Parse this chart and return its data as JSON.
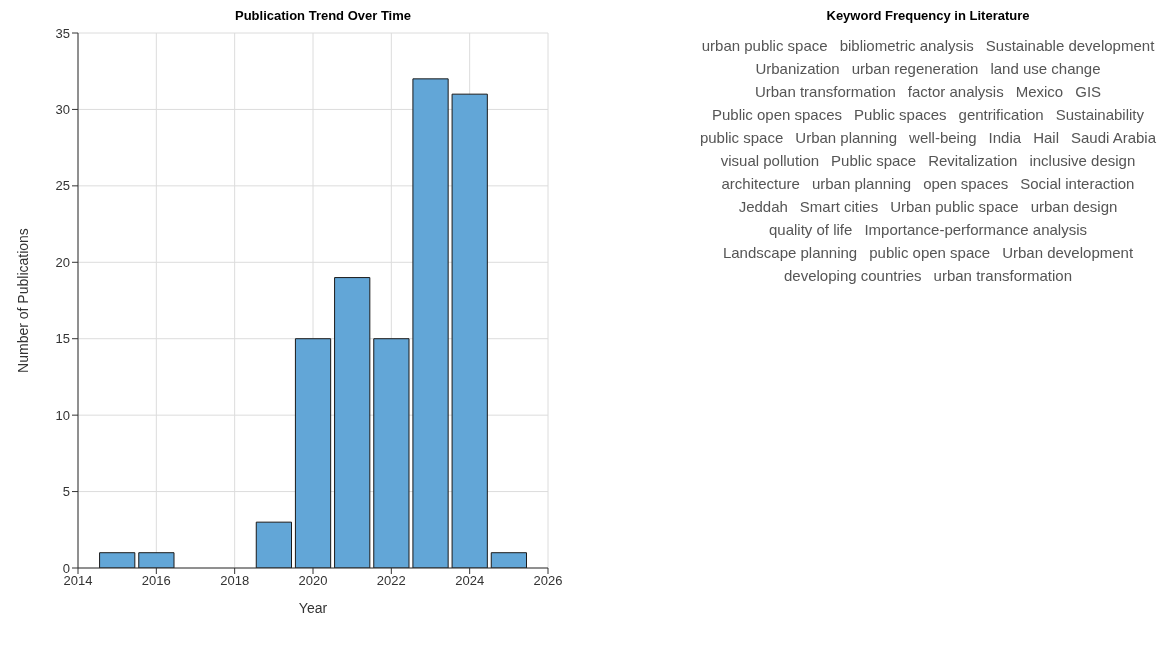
{
  "chart_data": [
    {
      "type": "histogram",
      "title": "Publication Trend Over Time",
      "xlabel": "Year",
      "ylabel": "Number of Publications",
      "bins": [
        2014.5,
        2015.5,
        2016.5,
        2017.5,
        2018.5,
        2019.5,
        2020.5,
        2021.5,
        2022.5,
        2023.5,
        2024.5,
        2025.5
      ],
      "values": [
        1,
        1,
        0,
        0,
        3,
        15,
        19,
        15,
        32,
        31,
        1
      ],
      "color": "#62a6d7",
      "xlim": [
        2014,
        2026
      ],
      "xticks": [
        2014,
        2016,
        2018,
        2020,
        2022,
        2024,
        2026
      ],
      "ylim": [
        0,
        35
      ],
      "yticks": [
        0,
        5,
        10,
        15,
        20,
        25,
        30,
        35
      ],
      "grid": true
    },
    {
      "type": "other",
      "title": "Keyword Frequency in Literature",
      "annotations": [
        "urban public space",
        "bibliometric analysis",
        "Sustainable development",
        "Urbanization",
        "urban regeneration",
        "land use change",
        "Urban transformation",
        "factor analysis",
        "Mexico",
        "GIS",
        "Public open spaces",
        "Public spaces",
        "gentrification",
        "Sustainability",
        "public space",
        "Urban planning",
        "well-being",
        "India",
        "Hail",
        "Saudi Arabia",
        "visual pollution",
        "Public space",
        "Revitalization",
        "inclusive design",
        "architecture",
        "urban planning",
        "open spaces",
        "Social interaction",
        "Jeddah",
        "Smart cities",
        "Urban public space",
        "urban design",
        "quality of life",
        "Importance-performance analysis",
        "Landscape planning",
        "public open space",
        "Urban development",
        "developing countries",
        "urban transformation"
      ]
    }
  ]
}
